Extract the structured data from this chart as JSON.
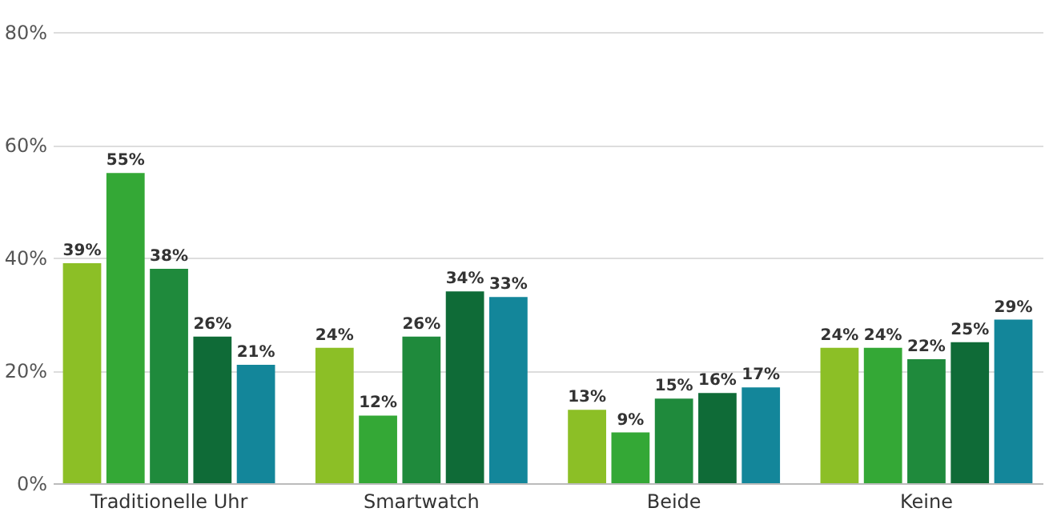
{
  "chart_data": {
    "type": "bar",
    "categories": [
      "Traditionelle Uhr",
      "Smartwatch",
      "Beide",
      "Keine"
    ],
    "series": [
      {
        "color": "#8cbf26",
        "values": [
          39,
          24,
          13,
          24
        ],
        "value_labels": [
          "39%",
          "24%",
          "13%",
          "24%"
        ]
      },
      {
        "color": "#34a836",
        "values": [
          55,
          12,
          9,
          24
        ],
        "value_labels": [
          "55%",
          "12%",
          "9%",
          "24%"
        ]
      },
      {
        "color": "#1f8a3c",
        "values": [
          38,
          26,
          15,
          22
        ],
        "value_labels": [
          "38%",
          "26%",
          "15%",
          "22%"
        ]
      },
      {
        "color": "#0f6b37",
        "values": [
          26,
          34,
          16,
          25
        ],
        "value_labels": [
          "26%",
          "34%",
          "16%",
          "25%"
        ]
      },
      {
        "color": "#13869a",
        "values": [
          21,
          33,
          17,
          29
        ],
        "value_labels": [
          "21%",
          "33%",
          "17%",
          "29%"
        ]
      }
    ],
    "ylim": [
      0,
      80
    ],
    "yticks": [
      {
        "value": 0,
        "label": "0%"
      },
      {
        "value": 20,
        "label": "20%"
      },
      {
        "value": 40,
        "label": "40%"
      },
      {
        "value": 60,
        "label": "60%"
      },
      {
        "value": 80,
        "label": "80%"
      }
    ],
    "grid": "y",
    "legend": false
  }
}
